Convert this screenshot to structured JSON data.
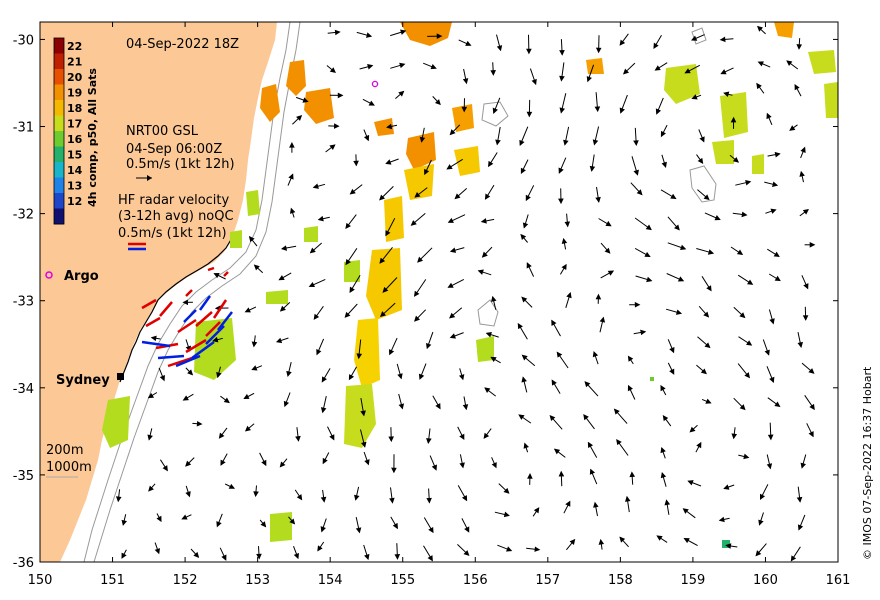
{
  "map": {
    "date_title": "04-Sep-2022 18Z",
    "colorbar_title": "4h comp, p50, All Sats",
    "colorbar_ticks": [
      "22",
      "21",
      "20",
      "19",
      "18",
      "17",
      "16",
      "15",
      "14",
      "13",
      "12"
    ],
    "colorbar_colors": [
      "#8b0000",
      "#c02000",
      "#e85000",
      "#f29000",
      "#f5b800",
      "#c8dc1e",
      "#6ecb2e",
      "#22b06a",
      "#18b4c8",
      "#1e82e6",
      "#1e46c8",
      "#101070"
    ],
    "legend_gsl": {
      "line1": "NRT00 GSL",
      "line2": "04-Sep 06:00Z",
      "line3": "0.5m/s (1kt 12h)"
    },
    "legend_hf": {
      "line1": "HF radar velocity",
      "line2": "(3-12h avg) noQC",
      "line3": "0.5m/s (1kt 12h)"
    },
    "places": {
      "argo": "Argo",
      "sydney": "Sydney"
    },
    "isobaths": {
      "a": "200m",
      "b": "1000m"
    },
    "credit": "© IMOS 07-Sep-2022 16:37 Hobart",
    "colors": {
      "land": "#fbc896",
      "sst_orange": "#f29000",
      "sst_yellow": "#f5d200",
      "sst_green": "#b4dc1e",
      "hf_red": "#e00000",
      "hf_blue": "#0020e0",
      "argo": "#e000e0"
    }
  },
  "chart_data": {
    "type": "map",
    "x_axis": {
      "ticks": [
        "150",
        "151",
        "152",
        "153",
        "154",
        "155",
        "156",
        "157",
        "158",
        "159",
        "160",
        "161"
      ],
      "range": [
        150,
        161
      ]
    },
    "y_axis": {
      "ticks": [
        "-30",
        "-31",
        "-32",
        "-33",
        "-34",
        "-35",
        "-36"
      ],
      "range": [
        -36,
        -29.8
      ]
    },
    "argo_float": {
      "lon": 154.65,
      "lat": -30.47
    }
  }
}
